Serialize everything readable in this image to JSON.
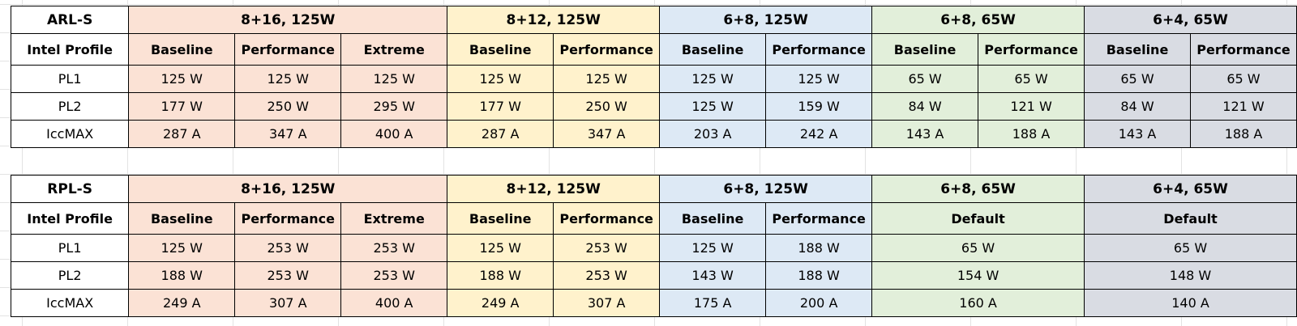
{
  "tables": [
    {
      "id": "arl",
      "label": "ARL-S",
      "profile_label": "Intel Profile",
      "row_labels": [
        "PL1",
        "PL2",
        "IccMAX"
      ],
      "groups": [
        {
          "title": "8+16, 125W",
          "color": "#fbe2d5",
          "profiles": [
            "Baseline",
            "Performance",
            "Extreme"
          ],
          "rows": [
            [
              "125 W",
              "125 W",
              "125 W"
            ],
            [
              "177 W",
              "250 W",
              "295 W"
            ],
            [
              "287 A",
              "347 A",
              "400 A"
            ]
          ]
        },
        {
          "title": "8+12, 125W",
          "color": "#fff2cc",
          "profiles": [
            "Baseline",
            "Performance"
          ],
          "rows": [
            [
              "125 W",
              "125 W"
            ],
            [
              "177 W",
              "250 W"
            ],
            [
              "287 A",
              "347 A"
            ]
          ]
        },
        {
          "title": "6+8, 125W",
          "color": "#dde9f5",
          "profiles": [
            "Baseline",
            "Performance"
          ],
          "rows": [
            [
              "125 W",
              "125 W"
            ],
            [
              "125 W",
              "159 W"
            ],
            [
              "203 A",
              "242 A"
            ]
          ]
        },
        {
          "title": "6+8, 65W",
          "color": "#e2efda",
          "profiles": [
            "Baseline",
            "Performance"
          ],
          "rows": [
            [
              "65 W",
              "65 W"
            ],
            [
              "84 W",
              "121 W"
            ],
            [
              "143 A",
              "188 A"
            ]
          ]
        },
        {
          "title": "6+4, 65W",
          "color": "#d9dce3",
          "profiles": [
            "Baseline",
            "Performance"
          ],
          "rows": [
            [
              "65 W",
              "65 W"
            ],
            [
              "84 W",
              "121 W"
            ],
            [
              "143 A",
              "188 A"
            ]
          ]
        }
      ]
    },
    {
      "id": "rpl",
      "label": "RPL-S",
      "profile_label": "Intel Profile",
      "row_labels": [
        "PL1",
        "PL2",
        "IccMAX"
      ],
      "groups": [
        {
          "title": "8+16, 125W",
          "color": "#fbe2d5",
          "profiles": [
            "Baseline",
            "Performance",
            "Extreme"
          ],
          "rows": [
            [
              "125 W",
              "253 W",
              "253 W"
            ],
            [
              "188 W",
              "253 W",
              "253 W"
            ],
            [
              "249 A",
              "307 A",
              "400 A"
            ]
          ]
        },
        {
          "title": "8+12, 125W",
          "color": "#fff2cc",
          "profiles": [
            "Baseline",
            "Performance"
          ],
          "rows": [
            [
              "125 W",
              "253 W"
            ],
            [
              "188 W",
              "253 W"
            ],
            [
              "249 A",
              "307 A"
            ]
          ]
        },
        {
          "title": "6+8, 125W",
          "color": "#dde9f5",
          "profiles": [
            "Baseline",
            "Performance"
          ],
          "rows": [
            [
              "125 W",
              "188 W"
            ],
            [
              "143 W",
              "188 W"
            ],
            [
              "175 A",
              "200 A"
            ]
          ]
        },
        {
          "title": "6+8, 65W",
          "color": "#e2efda",
          "profiles": [
            "Default"
          ],
          "rows": [
            [
              "65 W"
            ],
            [
              "154 W"
            ],
            [
              "160 A"
            ]
          ]
        },
        {
          "title": "6+4, 65W",
          "color": "#d9dce3",
          "profiles": [
            "Default"
          ],
          "rows": [
            [
              "65 W"
            ],
            [
              "148 W"
            ],
            [
              "140 A"
            ]
          ]
        }
      ]
    }
  ]
}
